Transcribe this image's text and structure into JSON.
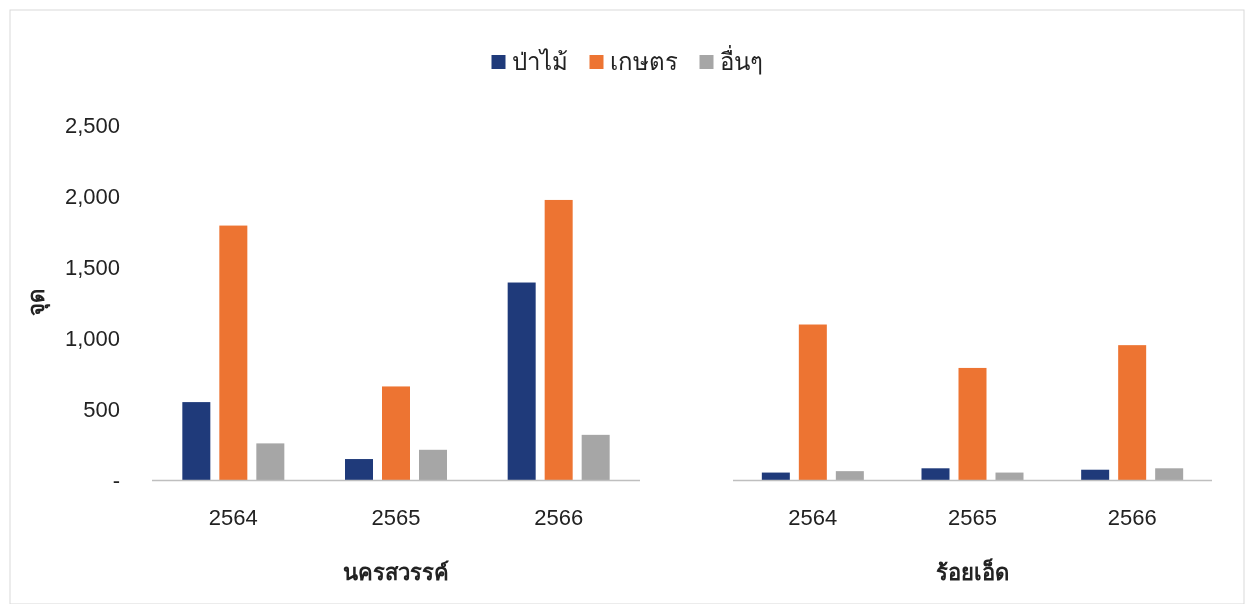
{
  "chart_data": [
    {
      "type": "bar",
      "categories": [
        "2564",
        "2565",
        "2566"
      ],
      "xlabel": "นครสวรรค์",
      "ylabel": "จุด",
      "ylim": [
        0,
        2500
      ],
      "yticks": [
        {
          "value": 0,
          "label": "-"
        },
        500,
        {
          "value": 1000,
          "label": "1,000"
        },
        {
          "value": 1500,
          "label": "1,500"
        },
        {
          "value": 2000,
          "label": "2,000"
        },
        {
          "value": 2500,
          "label": "2,500"
        }
      ],
      "legend": "top",
      "series": [
        {
          "name": "ป่าไม้",
          "color": "#1f3a7a",
          "values": [
            550,
            150,
            1390
          ]
        },
        {
          "name": "เกษตร",
          "color": "#ed7432",
          "values": [
            1790,
            660,
            1970
          ]
        },
        {
          "name": "อื่นๆ",
          "color": "#a6a6a6",
          "values": [
            260,
            215,
            320
          ]
        }
      ]
    },
    {
      "type": "bar",
      "categories": [
        "2564",
        "2565",
        "2566"
      ],
      "xlabel": "ร้อยเอ็ด",
      "ylim": [
        0,
        2500
      ],
      "tick_labels": "x",
      "series": [
        {
          "color": "#1f3a7a",
          "values": [
            55,
            85,
            75
          ]
        },
        {
          "color": "#ed7432",
          "values": [
            1095,
            790,
            950
          ]
        },
        {
          "color": "#a6a6a6",
          "values": [
            65,
            55,
            85
          ]
        }
      ]
    }
  ]
}
